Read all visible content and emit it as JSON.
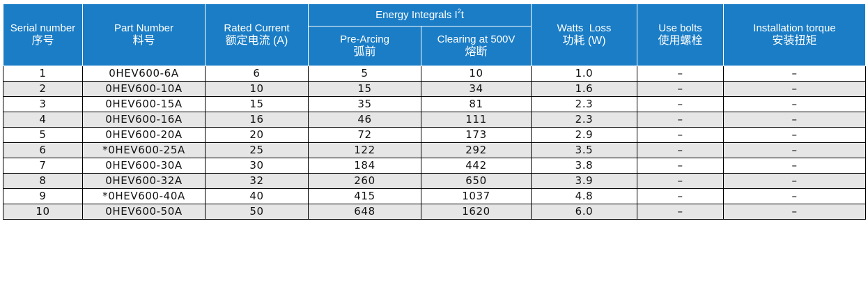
{
  "header": {
    "serial_en": "Serial number",
    "serial_zh": "序号",
    "part_en": "Part Number",
    "part_zh": "料号",
    "rated_en": "Rated Current",
    "rated_zh": "额定电流 (A)",
    "energy_prefix": "Energy Integrals I",
    "energy_sup": "2",
    "energy_suffix": "t",
    "pre_en": "Pre-Arcing",
    "pre_zh": "弧前",
    "clear_en": "Clearing at 500V",
    "clear_zh": "熔断",
    "watts_en": "Watts  Loss",
    "watts_zh": "功耗 (W)",
    "bolts_en": "Use bolts",
    "bolts_zh": "使用螺栓",
    "torque_en": "Installation torque",
    "torque_zh": "安装扭矩"
  },
  "rows": [
    {
      "serial": "1",
      "part": "0HEV600-6A",
      "rated": "6",
      "pre": "5",
      "clear": "10",
      "watts": "1.0",
      "bolts": "–",
      "torque": "–"
    },
    {
      "serial": "2",
      "part": "0HEV600-10A",
      "rated": "10",
      "pre": "15",
      "clear": "34",
      "watts": "1.6",
      "bolts": "–",
      "torque": "–"
    },
    {
      "serial": "3",
      "part": "0HEV600-15A",
      "rated": "15",
      "pre": "35",
      "clear": "81",
      "watts": "2.3",
      "bolts": "–",
      "torque": "–"
    },
    {
      "serial": "4",
      "part": "0HEV600-16A",
      "rated": "16",
      "pre": "46",
      "clear": "111",
      "watts": "2.3",
      "bolts": "–",
      "torque": "–"
    },
    {
      "serial": "5",
      "part": "0HEV600-20A",
      "rated": "20",
      "pre": "72",
      "clear": "173",
      "watts": "2.9",
      "bolts": "–",
      "torque": "–"
    },
    {
      "serial": "6",
      "part": "*0HEV600-25A",
      "rated": "25",
      "pre": "122",
      "clear": "292",
      "watts": "3.5",
      "bolts": "–",
      "torque": "–"
    },
    {
      "serial": "7",
      "part": "0HEV600-30A",
      "rated": "30",
      "pre": "184",
      "clear": "442",
      "watts": "3.8",
      "bolts": "–",
      "torque": "–"
    },
    {
      "serial": "8",
      "part": "0HEV600-32A",
      "rated": "32",
      "pre": "260",
      "clear": "650",
      "watts": "3.9",
      "bolts": "–",
      "torque": "–"
    },
    {
      "serial": "9",
      "part": "*0HEV600-40A",
      "rated": "40",
      "pre": "415",
      "clear": "1037",
      "watts": "4.8",
      "bolts": "–",
      "torque": "–"
    },
    {
      "serial": "10",
      "part": "0HEV600-50A",
      "rated": "50",
      "pre": "648",
      "clear": "1620",
      "watts": "6.0",
      "bolts": "–",
      "torque": "–"
    }
  ]
}
